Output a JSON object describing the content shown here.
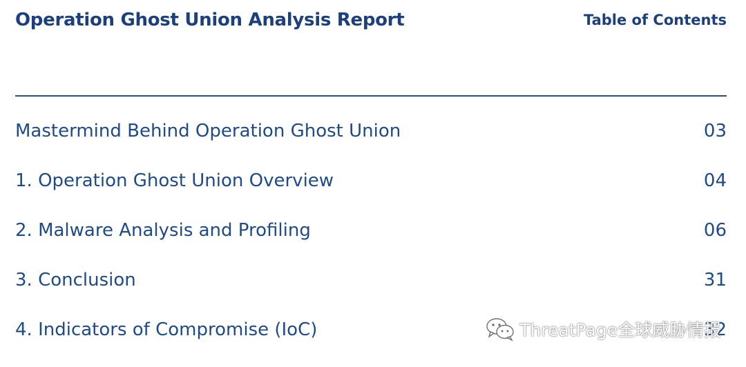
{
  "header": {
    "title": "Operation Ghost Union Analysis Report",
    "toc_heading": "Table of Contents"
  },
  "toc": {
    "items": [
      {
        "label": "Mastermind Behind Operation Ghost Union",
        "page": "03"
      },
      {
        "label": "1. Operation Ghost Union Overview",
        "page": "04"
      },
      {
        "label": "2. Malware Analysis and Profiling",
        "page": "06"
      },
      {
        "label": "3. Conclusion",
        "page": "31"
      },
      {
        "label": "4. Indicators of Compromise (IoC)",
        "page": "32"
      }
    ]
  },
  "watermark": {
    "icon": "wechat-icon",
    "text": "ThreatPage全球威胁情报"
  },
  "colors": {
    "title": "#1c3f7d",
    "text": "#1f4a8a",
    "divider": "#2b4a80",
    "background": "#ffffff"
  }
}
